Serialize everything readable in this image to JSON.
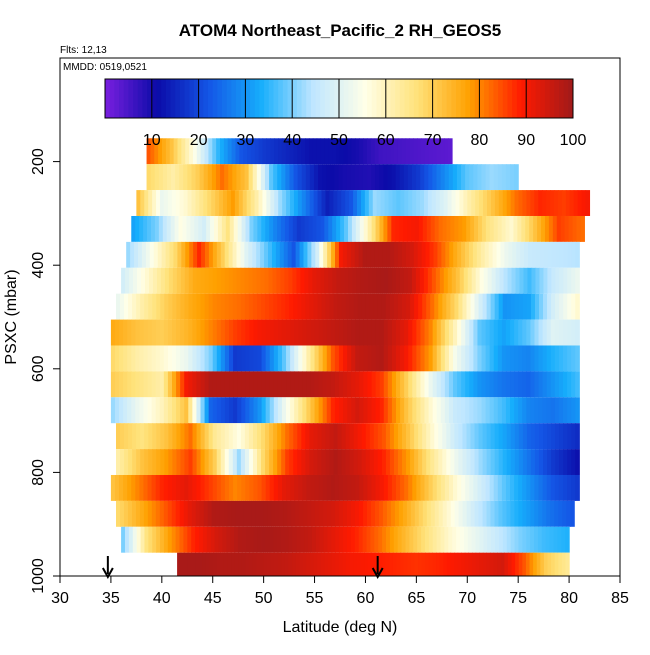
{
  "header": {
    "title": "ATOM4 Northeast_Pacific_2 RH_GEOS5",
    "flights": "Flts: 12,13",
    "dates": "MMDD: 0519,0521"
  },
  "colorbar": {
    "ticks": [
      "10",
      "20",
      "30",
      "40",
      "50",
      "60",
      "70",
      "80",
      "90",
      "100"
    ],
    "stops": [
      "#7a1fe0",
      "#0b0ba8",
      "#1456e6",
      "#16aefc",
      "#bfe6ff",
      "#ffffe8",
      "#ffe27a",
      "#ffa000",
      "#ff1a00",
      "#a01a1a"
    ]
  },
  "chart_data": {
    "type": "heatmap",
    "title": "ATOM4 Northeast_Pacific_2 RH_GEOS5",
    "xlabel": "Latitude (deg N)",
    "ylabel": "PSXC (mbar)",
    "xlim": [
      30,
      85
    ],
    "ylim": [
      1000,
      0
    ],
    "x_ticks": [
      "30",
      "35",
      "40",
      "45",
      "50",
      "55",
      "60",
      "65",
      "70",
      "75",
      "80",
      "85"
    ],
    "y_ticks": [
      "200",
      "400",
      "600",
      "800",
      "1000"
    ],
    "colorbar_range": [
      0,
      100
    ],
    "arrows_at_latitude": [
      34.7,
      61.2
    ],
    "bands": [
      {
        "p": 180,
        "x0": 38.5,
        "x1": 68.5,
        "v": [
          84,
          72,
          55,
          35,
          22,
          18,
          15,
          12,
          12,
          10,
          6,
          5,
          4,
          3
        ]
      },
      {
        "p": 230,
        "x0": 38.5,
        "x1": 75.0,
        "v": [
          68,
          62,
          70,
          82,
          72,
          38,
          22,
          12,
          10,
          9,
          12,
          18,
          28,
          38,
          42,
          40
        ]
      },
      {
        "p": 280,
        "x0": 37.5,
        "x1": 82.0,
        "v": [
          72,
          52,
          58,
          68,
          78,
          62,
          42,
          28,
          14,
          22,
          42,
          38,
          42,
          50,
          62,
          72,
          82,
          88,
          86,
          90
        ]
      },
      {
        "p": 330,
        "x0": 37.0,
        "x1": 81.5,
        "v": [
          32,
          40,
          56,
          48,
          66,
          40,
          28,
          18,
          22,
          38,
          62,
          88,
          90,
          82,
          78,
          66,
          58,
          72,
          86,
          82
        ]
      },
      {
        "p": 380,
        "x0": 36.5,
        "x1": 81.0,
        "v": [
          42,
          55,
          68,
          88,
          70,
          50,
          36,
          22,
          48,
          90,
          98,
          98,
          94,
          86,
          74,
          62,
          52,
          46,
          45,
          44
        ]
      },
      {
        "p": 430,
        "x0": 36.0,
        "x1": 81.0,
        "v": [
          48,
          58,
          68,
          76,
          78,
          80,
          82,
          86,
          92,
          96,
          98,
          99,
          96,
          84,
          72,
          56,
          44,
          36,
          46,
          52
        ]
      },
      {
        "p": 480,
        "x0": 35.5,
        "x1": 81.0,
        "v": [
          52,
          62,
          70,
          76,
          80,
          82,
          85,
          88,
          92,
          96,
          98,
          98,
          94,
          82,
          68,
          48,
          30,
          32,
          48,
          58
        ]
      },
      {
        "p": 530,
        "x0": 35.0,
        "x1": 81.0,
        "v": [
          76,
          72,
          70,
          74,
          80,
          86,
          90,
          92,
          94,
          96,
          98,
          98,
          92,
          80,
          60,
          38,
          32,
          38,
          50,
          48
        ]
      },
      {
        "p": 580,
        "x0": 35.0,
        "x1": 81.0,
        "v": [
          68,
          62,
          58,
          52,
          40,
          18,
          20,
          38,
          62,
          84,
          96,
          98,
          90,
          78,
          54,
          40,
          30,
          28,
          34,
          38
        ]
      },
      {
        "p": 630,
        "x0": 35.0,
        "x1": 81.0,
        "v": [
          70,
          66,
          62,
          90,
          98,
          98,
          98,
          98,
          98,
          96,
          92,
          86,
          70,
          52,
          38,
          30,
          26,
          24,
          30,
          36
        ]
      },
      {
        "p": 680,
        "x0": 35.0,
        "x1": 81.0,
        "v": [
          42,
          52,
          60,
          72,
          24,
          18,
          30,
          52,
          70,
          88,
          94,
          88,
          72,
          58,
          46,
          42,
          36,
          28,
          26,
          30
        ]
      },
      {
        "p": 730,
        "x0": 35.5,
        "x1": 81.0,
        "v": [
          70,
          66,
          72,
          82,
          64,
          56,
          68,
          82,
          92,
          96,
          90,
          84,
          72,
          58,
          46,
          38,
          32,
          24,
          20,
          16
        ]
      },
      {
        "p": 780,
        "x0": 35.5,
        "x1": 81.0,
        "v": [
          62,
          72,
          78,
          86,
          70,
          42,
          68,
          86,
          94,
          98,
          94,
          88,
          78,
          64,
          52,
          42,
          34,
          26,
          18,
          12
        ]
      },
      {
        "p": 830,
        "x0": 35.0,
        "x1": 81.0,
        "v": [
          72,
          80,
          88,
          92,
          86,
          80,
          84,
          92,
          96,
          98,
          96,
          90,
          82,
          70,
          58,
          48,
          38,
          30,
          22,
          18
        ]
      },
      {
        "p": 880,
        "x0": 35.5,
        "x1": 80.5,
        "v": [
          68,
          76,
          84,
          92,
          98,
          99,
          99,
          98,
          96,
          94,
          90,
          84,
          76,
          66,
          56,
          46,
          38,
          32,
          26,
          22
        ]
      },
      {
        "p": 930,
        "x0": 36.0,
        "x1": 80.0,
        "v": [
          40,
          66,
          78,
          88,
          94,
          98,
          99,
          98,
          96,
          92,
          88,
          82,
          74,
          66,
          58,
          52,
          46,
          40,
          36,
          34
        ]
      },
      {
        "p": 980,
        "x0": 41.5,
        "x1": 80.0,
        "v": [
          99,
          99,
          98,
          98,
          97,
          96,
          94,
          92,
          90,
          89,
          88,
          87,
          88,
          90,
          92,
          94,
          84,
          70,
          64
        ]
      }
    ]
  }
}
